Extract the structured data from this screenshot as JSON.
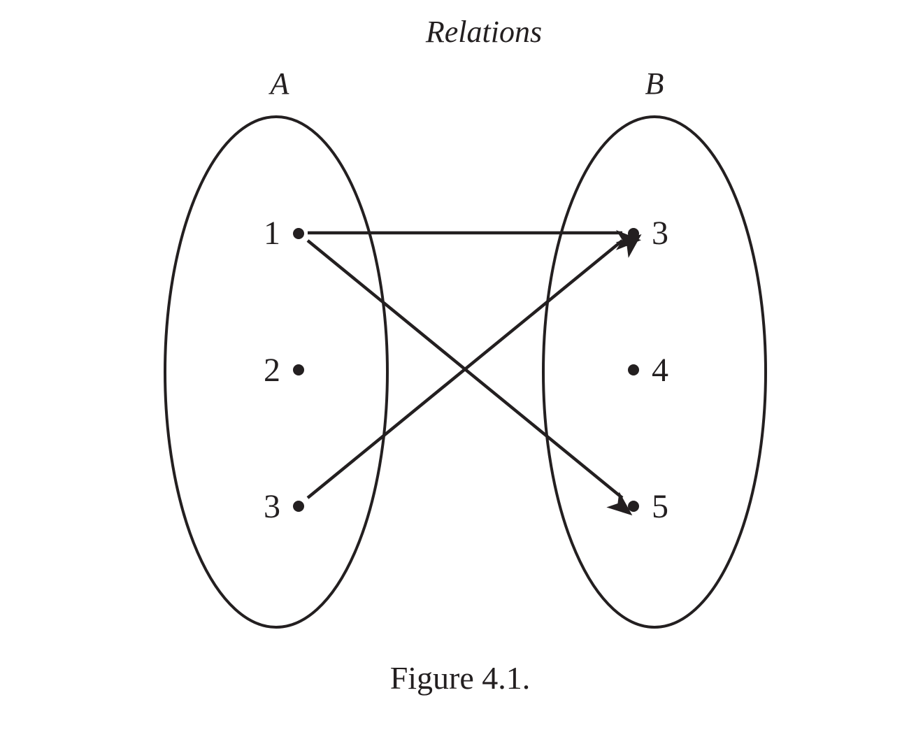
{
  "title": "Relations",
  "caption": "Figure 4.1.",
  "sets": [
    {
      "name": "A",
      "elements": [
        "1",
        "2",
        "3"
      ]
    },
    {
      "name": "B",
      "elements": [
        "3",
        "4",
        "5"
      ]
    }
  ],
  "relation": [
    {
      "from": "1",
      "to": "3"
    },
    {
      "from": "1",
      "to": "5"
    },
    {
      "from": "3",
      "to": "3"
    }
  ],
  "colors": {
    "ink": "#231f20",
    "background": "#ffffff"
  }
}
